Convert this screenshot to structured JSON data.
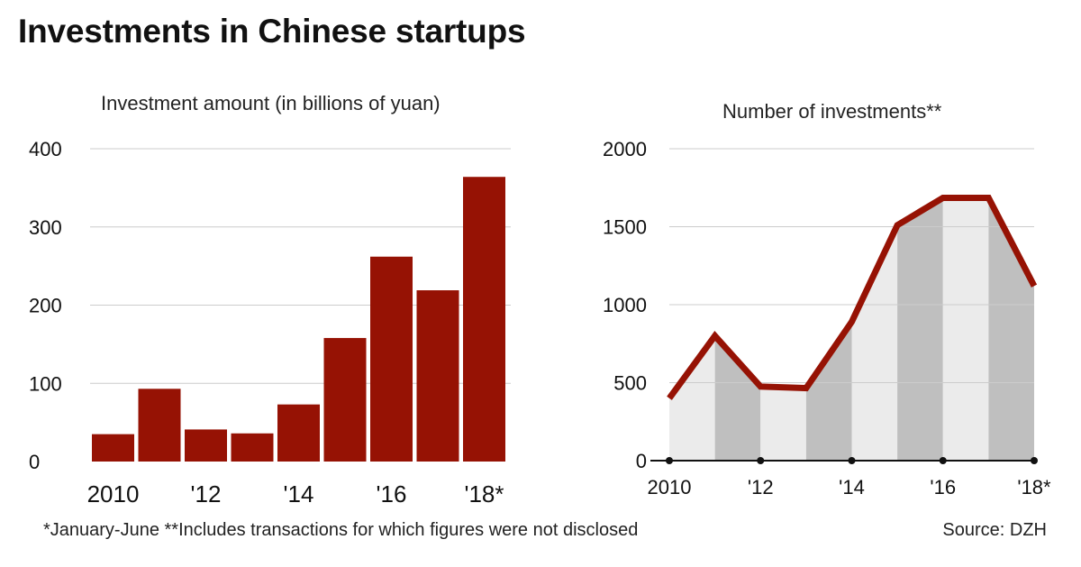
{
  "title": "Investments in Chinese startups",
  "footnote": "*January-June **Includes transactions for which figures were not disclosed",
  "source": "Source: DZH",
  "colors": {
    "bar": "#961204",
    "line": "#961204",
    "area_light": "#ebebeb",
    "area_dark": "#bfbfbf",
    "grid": "#cccccc",
    "axis": "#111111"
  },
  "chart_data": [
    {
      "type": "bar",
      "title": "Investment amount (in billions of yuan)",
      "categories": [
        "2010",
        "2011",
        "'12",
        "2013",
        "'14",
        "2015",
        "'16",
        "2017",
        "'18*"
      ],
      "x_tick_labels": [
        "2010",
        "'12",
        "'14",
        "'16",
        "'18*"
      ],
      "values": [
        35,
        93,
        41,
        36,
        73,
        158,
        262,
        219,
        364
      ],
      "ylim": [
        0,
        400
      ],
      "yticks": [
        0,
        100,
        200,
        300,
        400
      ],
      "grid": true
    },
    {
      "type": "area",
      "title": "Number of investments**",
      "categories": [
        "2010",
        "2011",
        "'12",
        "2013",
        "'14",
        "2015",
        "'16",
        "2017",
        "'18*"
      ],
      "x_tick_labels": [
        "2010",
        "'12",
        "'14",
        "'16",
        "'18*"
      ],
      "values": [
        400,
        800,
        475,
        465,
        890,
        1510,
        1685,
        1685,
        1120
      ],
      "ylim": [
        0,
        2000
      ],
      "yticks": [
        0,
        500,
        1000,
        1500,
        2000
      ],
      "grid": true
    }
  ]
}
